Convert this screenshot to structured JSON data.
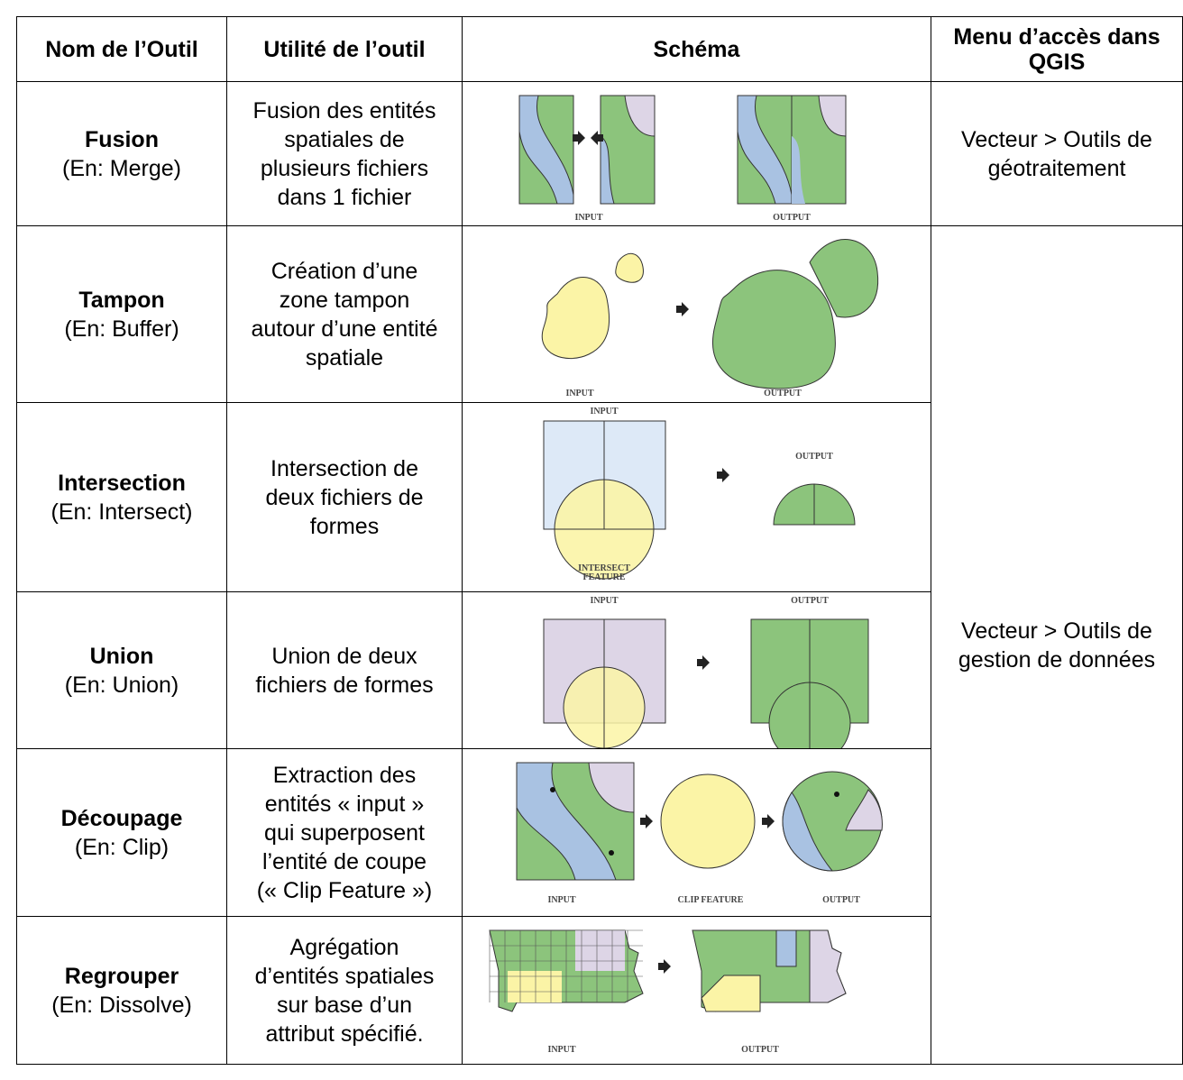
{
  "table": {
    "header": {
      "name": "Nom de l’Outil",
      "use": "Utilité de l’outil",
      "schema": "Schéma",
      "menu": [
        "Menu d’accès dans",
        "QGIS"
      ]
    },
    "rows": [
      {
        "name": "Fusion",
        "english": "(En: Merge)",
        "use": [
          "Fusion des entités",
          "spatiales de",
          "plusieurs fichiers",
          "dans 1 fichier"
        ],
        "schema_labels": [
          "INPUT",
          "OUTPUT"
        ]
      },
      {
        "name": "Tampon",
        "english": "(En: Buffer)",
        "use": [
          "Création d’une",
          "zone tampon",
          "autour d’une entité",
          "spatiale"
        ],
        "schema_labels": [
          "INPUT",
          "OUTPUT"
        ]
      },
      {
        "name": "Intersection",
        "english": "(En: Intersect)",
        "use": [
          "Intersection de",
          "deux fichiers de",
          "formes"
        ],
        "schema_labels": [
          "INPUT",
          "OUTPUT",
          "INTERSECT",
          "FEATURE"
        ]
      },
      {
        "name": "Union",
        "english": "(En: Union)",
        "use": [
          "Union de deux",
          "fichiers de formes"
        ],
        "schema_labels": [
          "INPUT",
          "OUTPUT"
        ]
      },
      {
        "name": "Découpage",
        "english": "(En: Clip)",
        "use": [
          "Extraction des",
          "entités « input »",
          "qui superposent",
          "l’entité de coupe",
          "(« Clip Feature »)"
        ],
        "schema_labels": [
          "INPUT",
          "CLIP FEATURE",
          "OUTPUT"
        ]
      },
      {
        "name": "Regrouper",
        "english": "(En: Dissolve)",
        "use": [
          "Agrégation",
          "d’entités spatiales",
          "sur base d’un",
          "attribut spécifié."
        ],
        "schema_labels": [
          "INPUT",
          "OUTPUT"
        ]
      }
    ],
    "menus": [
      [
        "Vecteur > Outils de",
        "géotraitement"
      ],
      [
        "Vecteur > Outils de",
        "gestion de données"
      ]
    ]
  }
}
